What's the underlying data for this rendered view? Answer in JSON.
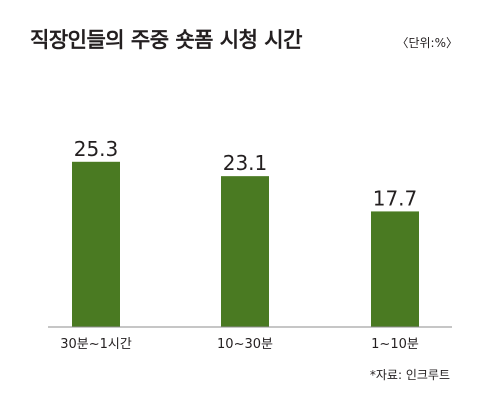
{
  "title": "직장인들의 주중 숏폼 시청 시간",
  "unit_label": "〈단위:%〉",
  "source": "*자료: 인크루트",
  "colors": {
    "bar": "#4a7a22",
    "baseline": "#8c8c8c",
    "text": "#231f20"
  },
  "chart_data": {
    "type": "bar",
    "title": "직장인들의 주중 숏폼 시청 시간",
    "categories": [
      "30분~1시간",
      "10~30분",
      "1~10분"
    ],
    "values": [
      25.3,
      23.1,
      17.7
    ],
    "value_labels": [
      "25.3",
      "23.1",
      "17.7"
    ],
    "xlabel": "",
    "ylabel": "",
    "ylim": [
      0,
      30
    ],
    "grid": false,
    "legend": "none"
  }
}
